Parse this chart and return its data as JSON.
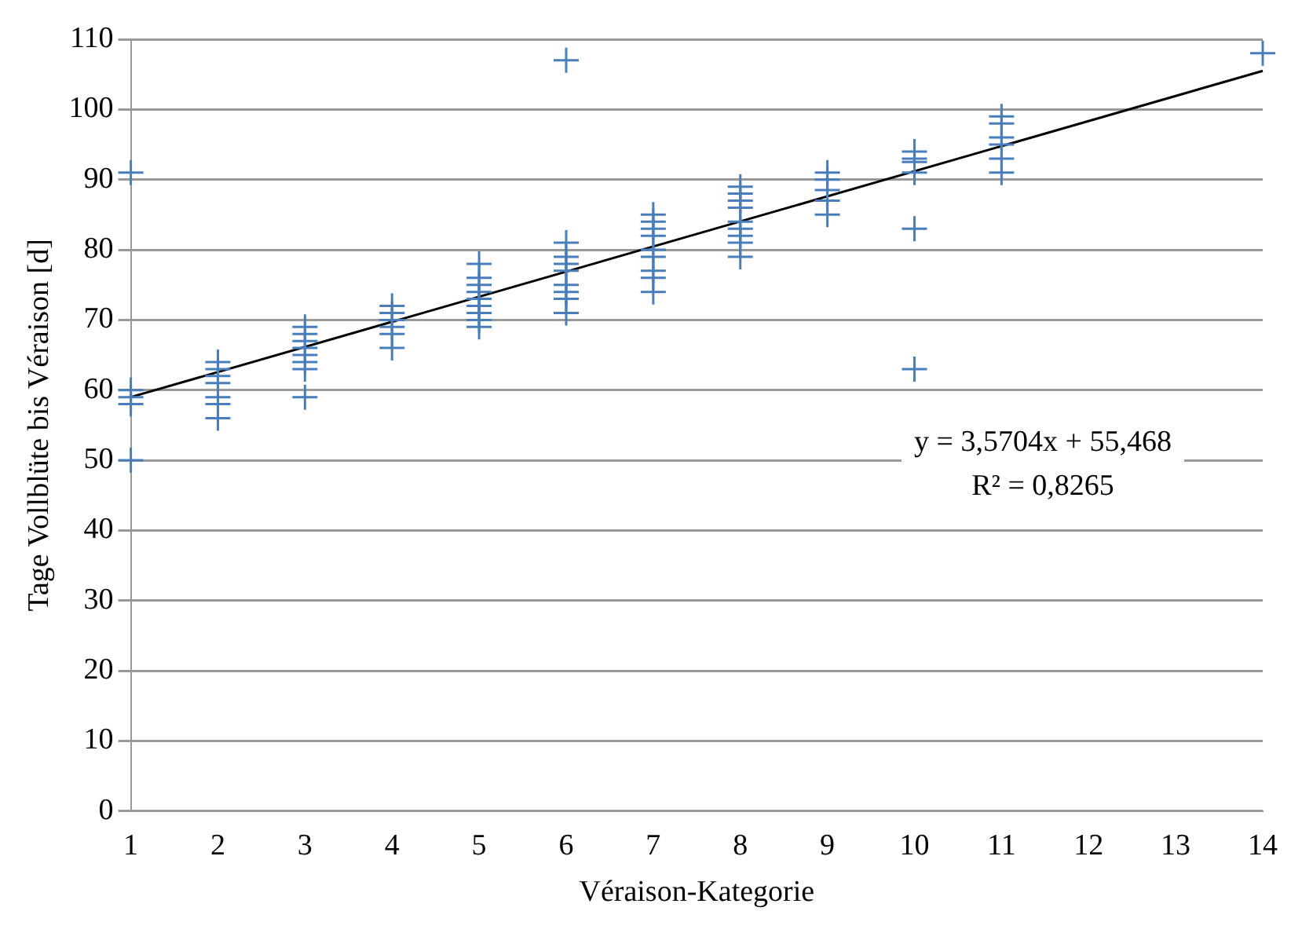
{
  "chart_data": {
    "type": "scatter",
    "xlabel": "Véraison-Kategorie",
    "ylabel": "Tage Vollblüte bis Véraison [d]",
    "xlim": [
      1,
      14
    ],
    "xticks": [
      1,
      2,
      3,
      4,
      5,
      6,
      7,
      8,
      9,
      10,
      11,
      12,
      13,
      14
    ],
    "ylim": [
      0,
      110
    ],
    "yticks": [
      0,
      10,
      20,
      30,
      40,
      50,
      60,
      70,
      80,
      90,
      100,
      110
    ],
    "grid": "y",
    "legend": false,
    "annotations": [
      "y = 3,5704x + 55,468",
      "R² = 0,8265"
    ],
    "series": [
      {
        "type": "scatter",
        "marker": "cross",
        "color": "#4a7ebb",
        "x": [
          1,
          1,
          1,
          1,
          1,
          2,
          2,
          2,
          2,
          2,
          2,
          2,
          3,
          3,
          3,
          3,
          3,
          3,
          3,
          3,
          4,
          4,
          4,
          4,
          4,
          4,
          5,
          5,
          5,
          5,
          5,
          5,
          5,
          5,
          5,
          6,
          6,
          6,
          6,
          6,
          6,
          6,
          6,
          6,
          7,
          7,
          7,
          7,
          7,
          7,
          7,
          7,
          7,
          8,
          8,
          8,
          8,
          8,
          8,
          8,
          8,
          8,
          9,
          9,
          9,
          9,
          9,
          10,
          10,
          10,
          10,
          10,
          10,
          11,
          11,
          11,
          11,
          11,
          11,
          14
        ],
        "values": [
          91,
          60,
          59,
          58,
          50,
          64,
          63,
          62,
          61,
          59,
          58,
          56,
          69,
          68,
          67,
          66,
          65,
          64,
          63,
          59,
          72,
          71,
          70,
          69,
          68,
          66,
          78,
          76,
          75,
          74,
          73,
          72,
          71,
          70,
          69,
          107,
          81,
          79,
          78,
          77,
          75,
          74,
          73,
          71,
          85,
          84,
          83,
          82,
          80,
          79,
          77,
          76,
          74,
          89,
          88,
          87,
          86,
          84,
          83,
          82,
          81,
          79,
          91,
          90,
          88.5,
          87,
          85,
          94,
          93,
          92.5,
          91,
          83,
          63,
          99,
          98,
          96,
          95,
          93,
          91,
          108
        ]
      },
      {
        "type": "line",
        "marker": "none",
        "color": "#000000",
        "x": [
          1,
          14
        ],
        "values": [
          59,
          105.5
        ]
      }
    ]
  }
}
